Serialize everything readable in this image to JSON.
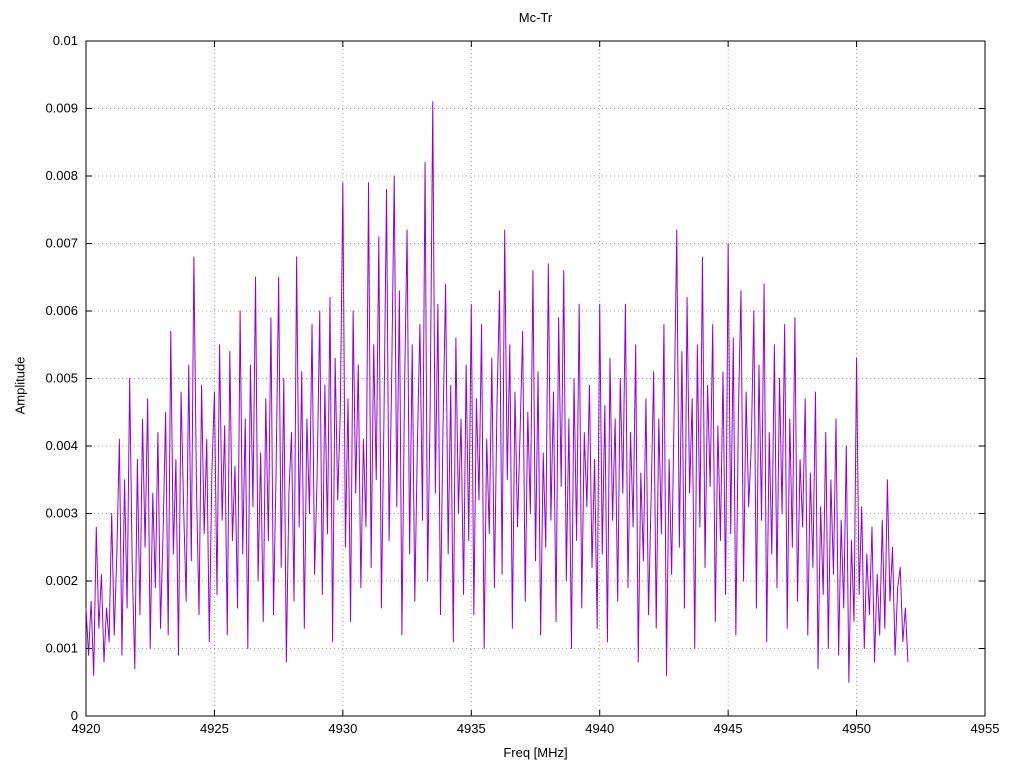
{
  "chart_data": {
    "type": "line",
    "title": "Mc-Tr",
    "xlabel": "Freq [MHz]",
    "ylabel": "Amplitude",
    "xlim": [
      4920,
      4955
    ],
    "ylim": [
      0,
      0.01
    ],
    "x_ticks": [
      4920,
      4925,
      4930,
      4935,
      4940,
      4945,
      4950,
      4955
    ],
    "x_tick_labels": [
      "4920",
      "4925",
      "4930",
      "4935",
      "4940",
      "4945",
      "4950",
      "4955"
    ],
    "y_ticks": [
      0,
      0.001,
      0.002,
      0.003,
      0.004,
      0.005,
      0.006,
      0.007,
      0.008,
      0.009,
      0.01
    ],
    "y_tick_labels": [
      "0",
      "0.001",
      "0.002",
      "0.003",
      "0.004",
      "0.005",
      "0.006",
      "0.007",
      "0.008",
      "0.009",
      "0.01"
    ],
    "grid": true,
    "grid_style": "dotted",
    "legend": "none",
    "line_color": "#9400d3",
    "border_color": "#000000",
    "grid_color": "#a0a0a0",
    "series": [
      {
        "name": "Mc-Tr",
        "x_start": 4920.0,
        "x_step": 0.1,
        "y": [
          0.0016,
          0.0009,
          0.0017,
          0.0006,
          0.0028,
          0.0013,
          0.0021,
          0.0008,
          0.0016,
          0.0011,
          0.003,
          0.0012,
          0.0024,
          0.0041,
          0.0009,
          0.0035,
          0.0016,
          0.005,
          0.0022,
          0.0007,
          0.0038,
          0.0015,
          0.0044,
          0.0025,
          0.0047,
          0.001,
          0.0033,
          0.0019,
          0.0042,
          0.0013,
          0.0027,
          0.0045,
          0.0012,
          0.0057,
          0.0024,
          0.0038,
          0.0009,
          0.0048,
          0.0031,
          0.0017,
          0.0052,
          0.0023,
          0.0068,
          0.0034,
          0.0015,
          0.0049,
          0.0027,
          0.0041,
          0.0011,
          0.0036,
          0.0048,
          0.0018,
          0.0055,
          0.0029,
          0.0043,
          0.0012,
          0.0054,
          0.0026,
          0.0037,
          0.0016,
          0.006,
          0.0024,
          0.0044,
          0.001,
          0.0052,
          0.0031,
          0.0065,
          0.002,
          0.0039,
          0.0014,
          0.0047,
          0.0026,
          0.0059,
          0.0015,
          0.0036,
          0.0065,
          0.0022,
          0.005,
          0.0008,
          0.0033,
          0.0042,
          0.0017,
          0.0068,
          0.0028,
          0.0051,
          0.0013,
          0.0044,
          0.003,
          0.0058,
          0.0021,
          0.0036,
          0.006,
          0.0018,
          0.0049,
          0.0027,
          0.0062,
          0.0011,
          0.0053,
          0.0032,
          0.0045,
          0.0079,
          0.0025,
          0.0047,
          0.0014,
          0.006,
          0.0033,
          0.0052,
          0.0019,
          0.0041,
          0.0028,
          0.0079,
          0.0022,
          0.0055,
          0.0035,
          0.0071,
          0.0016,
          0.0044,
          0.0078,
          0.0026,
          0.005,
          0.008,
          0.0031,
          0.0063,
          0.0012,
          0.0048,
          0.0072,
          0.0024,
          0.0055,
          0.0017,
          0.004,
          0.0058,
          0.0029,
          0.0082,
          0.002,
          0.0046,
          0.0091,
          0.0033,
          0.0061,
          0.0015,
          0.0043,
          0.0064,
          0.0024,
          0.0049,
          0.0011,
          0.0056,
          0.003,
          0.0044,
          0.0018,
          0.0052,
          0.0026,
          0.0061,
          0.0015,
          0.0047,
          0.0032,
          0.0058,
          0.001,
          0.0041,
          0.0027,
          0.0053,
          0.0019,
          0.0046,
          0.0063,
          0.0021,
          0.0072,
          0.0035,
          0.0055,
          0.0013,
          0.0048,
          0.0028,
          0.0042,
          0.0057,
          0.0017,
          0.0045,
          0.003,
          0.0066,
          0.0023,
          0.0051,
          0.0012,
          0.0039,
          0.0025,
          0.0067,
          0.0029,
          0.0048,
          0.0014,
          0.0059,
          0.0034,
          0.0066,
          0.002,
          0.0044,
          0.001,
          0.005,
          0.0026,
          0.0061,
          0.0016,
          0.0042,
          0.0031,
          0.0049,
          0.0022,
          0.0038,
          0.0013,
          0.0061,
          0.0024,
          0.0046,
          0.0011,
          0.0053,
          0.0029,
          0.0044,
          0.0017,
          0.005,
          0.0033,
          0.0061,
          0.0019,
          0.0042,
          0.0028,
          0.0055,
          0.0008,
          0.0036,
          0.0023,
          0.0047,
          0.0015,
          0.0032,
          0.0051,
          0.0013,
          0.0044,
          0.0027,
          0.0058,
          0.0006,
          0.0038,
          0.0021,
          0.0046,
          0.0072,
          0.0025,
          0.0054,
          0.0016,
          0.0062,
          0.0033,
          0.0047,
          0.001,
          0.0055,
          0.0028,
          0.0068,
          0.0022,
          0.0049,
          0.0034,
          0.0058,
          0.0014,
          0.0043,
          0.0026,
          0.0051,
          0.0018,
          0.007,
          0.0027,
          0.0056,
          0.0012,
          0.0045,
          0.0063,
          0.002,
          0.0048,
          0.0031,
          0.004,
          0.006,
          0.0016,
          0.0052,
          0.0029,
          0.0064,
          0.0011,
          0.0042,
          0.0024,
          0.0055,
          0.0019,
          0.005,
          0.003,
          0.0058,
          0.0013,
          0.0044,
          0.0025,
          0.0059,
          0.0017,
          0.0038,
          0.0028,
          0.0047,
          0.0012,
          0.0036,
          0.0022,
          0.0048,
          0.0007,
          0.0031,
          0.0018,
          0.0042,
          0.001,
          0.0035,
          0.0021,
          0.0044,
          0.0009,
          0.0029,
          0.0016,
          0.004,
          0.0005,
          0.0026,
          0.0014,
          0.0053,
          0.0018,
          0.0031,
          0.001,
          0.0024,
          0.0015,
          0.0028,
          0.0008,
          0.0021,
          0.0012,
          0.0029,
          0.0013,
          0.0035,
          0.0017,
          0.0025,
          0.0009,
          0.0019,
          0.0022,
          0.0011,
          0.0016,
          0.0008
        ]
      }
    ]
  }
}
